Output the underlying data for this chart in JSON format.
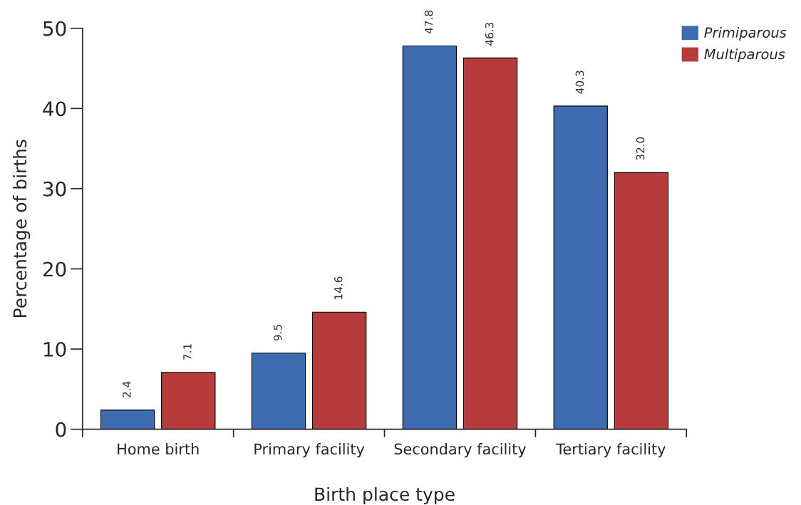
{
  "chart_data": {
    "type": "bar",
    "xlabel": "Birth place type",
    "ylabel": "Percentage of births",
    "categories": [
      "Home birth",
      "Primary facility",
      "Secondary facility",
      "Tertiary facility"
    ],
    "series": [
      {
        "name": "Primiparous",
        "color": "#3d6db0",
        "values": [
          2.4,
          9.5,
          47.8,
          40.3
        ],
        "value_labels": [
          "2.4",
          "9.5",
          "47.8",
          "40.3"
        ]
      },
      {
        "name": "Multiparous",
        "color": "#b53c3a",
        "values": [
          7.1,
          14.6,
          46.3,
          32.0
        ],
        "value_labels": [
          "7.1",
          "14.6",
          "46.3",
          "32.0"
        ]
      }
    ],
    "ylim": [
      0,
      50
    ],
    "yticks": [
      0,
      10,
      20,
      30,
      40,
      50
    ],
    "grid": false,
    "legend": "top right"
  }
}
